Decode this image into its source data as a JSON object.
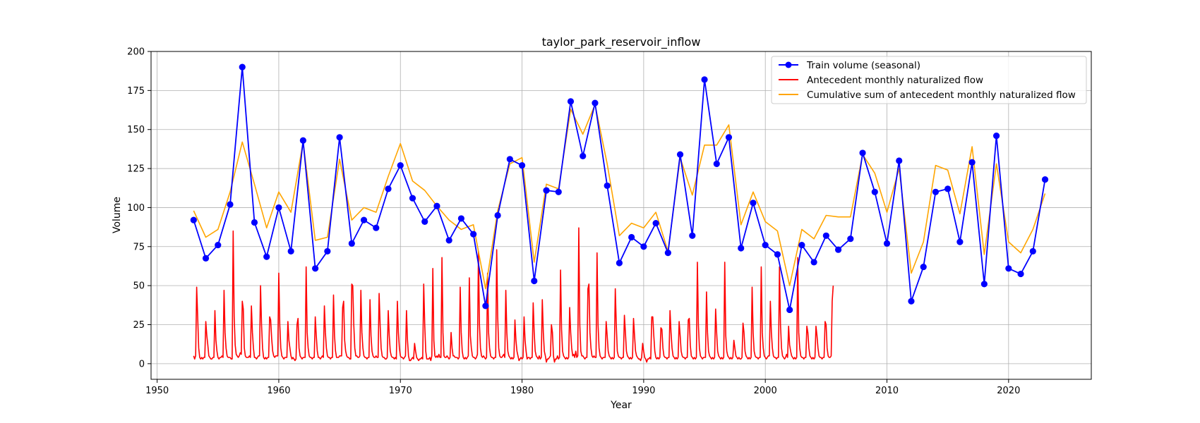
{
  "chart_data": {
    "type": "line",
    "title": "taylor_park_reservoir_inflow",
    "xlabel": "Year",
    "ylabel": "Volume",
    "xlim": [
      1949.5,
      2026.8
    ],
    "ylim": [
      -10,
      200
    ],
    "xticks": [
      1950,
      1960,
      1970,
      1980,
      1990,
      2000,
      2010,
      2020
    ],
    "yticks": [
      0,
      25,
      50,
      75,
      100,
      125,
      150,
      175,
      200
    ],
    "grid": true,
    "legend_position": "upper right",
    "series": [
      {
        "name": "Train volume (seasonal)",
        "color": "#0000ff",
        "marker": "circle",
        "x": [
          1953,
          1954,
          1955,
          1956,
          1957,
          1958,
          1959,
          1960,
          1961,
          1962,
          1963,
          1964,
          1965,
          1966,
          1967,
          1968,
          1969,
          1970,
          1971,
          1972,
          1973,
          1974,
          1975,
          1976,
          1977,
          1978,
          1979,
          1980,
          1981,
          1982,
          1983,
          1984,
          1985,
          1986,
          1987,
          1988,
          1989,
          1990,
          1991,
          1992,
          1993,
          1994,
          1995,
          1996,
          1997,
          1998,
          1999,
          2000,
          2001,
          2002,
          2003,
          2004,
          2005,
          2006,
          2007,
          2008,
          2009,
          2010,
          2011,
          2012,
          2013,
          2014,
          2015,
          2016,
          2017,
          2018,
          2019,
          2020,
          2021,
          2022,
          2023
        ],
        "y": [
          92,
          67.5,
          76,
          102,
          190,
          90.5,
          68.5,
          100,
          72,
          143,
          61,
          72,
          145,
          77,
          92,
          87,
          112,
          127,
          106,
          91,
          101,
          79,
          93,
          83,
          37,
          95,
          131,
          127,
          53,
          111,
          110,
          168,
          133,
          167,
          114,
          64.5,
          81,
          75,
          90,
          71,
          134,
          82,
          182,
          128,
          145,
          74,
          103,
          76,
          70,
          34.5,
          76,
          65,
          82,
          73,
          80,
          135,
          110,
          77,
          130,
          40,
          62,
          110,
          112,
          78,
          129,
          51,
          146,
          61,
          57.5,
          72,
          118
        ]
      },
      {
        "name": "Antecedent monthly naturalized flow",
        "color": "#ff0000",
        "x_start": 1953,
        "x_step": 0.08333,
        "y": [
          5,
          3,
          5,
          49,
          30,
          10,
          4,
          3,
          4,
          3,
          4,
          4,
          27,
          18,
          12,
          5,
          4,
          3,
          3,
          4,
          4,
          34,
          15,
          8,
          4,
          3,
          4,
          4,
          5,
          4,
          47,
          20,
          10,
          5,
          4,
          4,
          4,
          3,
          3,
          85,
          30,
          12,
          6,
          5,
          4,
          5,
          7,
          6,
          40,
          35,
          10,
          5,
          4,
          4,
          4,
          5,
          4,
          37,
          20,
          10,
          4,
          4,
          3,
          4,
          5,
          5,
          50,
          25,
          10,
          4,
          3,
          4,
          3,
          4,
          4,
          30,
          28,
          16,
          8,
          5,
          4,
          5,
          5,
          5,
          58,
          25,
          10,
          5,
          4,
          3,
          4,
          4,
          4,
          27,
          15,
          10,
          5,
          3,
          4,
          3,
          2,
          3,
          25,
          29,
          10,
          5,
          4,
          3,
          4,
          4,
          4,
          62,
          20,
          10,
          5,
          4,
          4,
          3,
          4,
          4,
          30,
          18,
          8,
          4,
          4,
          3,
          4,
          5,
          4,
          37,
          20,
          10,
          5,
          4,
          4,
          3,
          4,
          4,
          44,
          18,
          8,
          4,
          4,
          4,
          5,
          5,
          5,
          36,
          40,
          15,
          8,
          5,
          4,
          4,
          3,
          3,
          51,
          50,
          25,
          10,
          5,
          5,
          4,
          4,
          5,
          47,
          20,
          10,
          5,
          4,
          4,
          3,
          4,
          4,
          41,
          18,
          8,
          5,
          4,
          4,
          5,
          4,
          4,
          45,
          25,
          10,
          5,
          4,
          4,
          3,
          3,
          4,
          34,
          18,
          8,
          5,
          4,
          4,
          3,
          4,
          3,
          40,
          20,
          10,
          5,
          4,
          4,
          3,
          4,
          5,
          34,
          15,
          5,
          2,
          2,
          3,
          4,
          3,
          13,
          8,
          4,
          3,
          2,
          3,
          3,
          4,
          3,
          51,
          25,
          8,
          3,
          3,
          3,
          4,
          2,
          5,
          61,
          15,
          5,
          4,
          5,
          4,
          6,
          4,
          4,
          68,
          20,
          5,
          4,
          4,
          5,
          4,
          3,
          4,
          20,
          10,
          5,
          5,
          4,
          4,
          4,
          3,
          4,
          49,
          20,
          8,
          4,
          3,
          4,
          3,
          4,
          5,
          55,
          18,
          10,
          5,
          4,
          4,
          3,
          4,
          6,
          72,
          25,
          10,
          5,
          4,
          5,
          4,
          3,
          4,
          58,
          20,
          10,
          5,
          4,
          4,
          3,
          4,
          4,
          73,
          30,
          10,
          5,
          4,
          4,
          5,
          6,
          4,
          47,
          20,
          8,
          5,
          4,
          3,
          4,
          3,
          4,
          28,
          15,
          8,
          5,
          2,
          3,
          4,
          3,
          4,
          30,
          15,
          8,
          3,
          4,
          4,
          3,
          4,
          4,
          39,
          20,
          8,
          5,
          4,
          3,
          5,
          3,
          4,
          41,
          20,
          8,
          5,
          1,
          3,
          3,
          4,
          5,
          25,
          20,
          5,
          1,
          3,
          3,
          5,
          3,
          4,
          60,
          22,
          8,
          5,
          4,
          3,
          4,
          3,
          4,
          36,
          20,
          10,
          5,
          6,
          4,
          8,
          4,
          5,
          87,
          25,
          8,
          5,
          5,
          4,
          3,
          4,
          4,
          48,
          51,
          20,
          10,
          5,
          4,
          5,
          4,
          4,
          71,
          25,
          10,
          5,
          4,
          3,
          4,
          4,
          4,
          27,
          18,
          8,
          5,
          4,
          3,
          4,
          3,
          4,
          48,
          25,
          8,
          5,
          4,
          4,
          3,
          4,
          4,
          31,
          20,
          8,
          5,
          4,
          3,
          4,
          3,
          4,
          29,
          18,
          8,
          5,
          4,
          3,
          3,
          2,
          4,
          13,
          8,
          4,
          3,
          1,
          3,
          3,
          4,
          3,
          30,
          30,
          18,
          8,
          4,
          3,
          4,
          3,
          4,
          23,
          22,
          10,
          5,
          4,
          4,
          3,
          4,
          4,
          34,
          20,
          10,
          5,
          4,
          3,
          4,
          3,
          4,
          27,
          18,
          8,
          5,
          4,
          4,
          3,
          4,
          4,
          28,
          29,
          12,
          5,
          4,
          3,
          4,
          3,
          4,
          65,
          25,
          10,
          5,
          4,
          3,
          4,
          4,
          4,
          46,
          20,
          8,
          5,
          4,
          3,
          4,
          3,
          4,
          35,
          20,
          8,
          5,
          4,
          3,
          4,
          3,
          4,
          65,
          18,
          8,
          5,
          4,
          3,
          4,
          3,
          4,
          15,
          10,
          5,
          4,
          3,
          4,
          3,
          3,
          4,
          26,
          20,
          8,
          5,
          4,
          3,
          4,
          3,
          4,
          49,
          20,
          8,
          5,
          4,
          4,
          3,
          4,
          4,
          62,
          20,
          10,
          5,
          4,
          3,
          4,
          5,
          5,
          40,
          20,
          10,
          5,
          4,
          4,
          3,
          4,
          4,
          62,
          25,
          10,
          5,
          4,
          3,
          4,
          6,
          4,
          24,
          12,
          8,
          5,
          4,
          3,
          4,
          3,
          4,
          68,
          20,
          10,
          5,
          4,
          4,
          3,
          4,
          4,
          24,
          20,
          10,
          5,
          4,
          3,
          4,
          3,
          4,
          24,
          18,
          10,
          5,
          4,
          4,
          3,
          4,
          4,
          27,
          25,
          10,
          5,
          4,
          4,
          5,
          40,
          50
        ]
      },
      {
        "name": "Cumulative sum of antecedent monthly naturalized flow",
        "color": "#ffa500",
        "x": [
          1953,
          1954,
          1955,
          1956,
          1957,
          1958,
          1959,
          1960,
          1961,
          1962,
          1963,
          1964,
          1965,
          1966,
          1967,
          1968,
          1969,
          1970,
          1971,
          1972,
          1973,
          1974,
          1975,
          1976,
          1977,
          1978,
          1979,
          1980,
          1981,
          1982,
          1983,
          1984,
          1985,
          1986,
          1987,
          1988,
          1989,
          1990,
          1991,
          1992,
          1993,
          1994,
          1995,
          1996,
          1997,
          1998,
          1999,
          2000,
          2001,
          2002,
          2003,
          2004,
          2005,
          2006,
          2007,
          2008,
          2009,
          2010,
          2011,
          2012,
          2013,
          2014,
          2015,
          2016,
          2017,
          2018,
          2019,
          2020,
          2021,
          2022,
          2023
        ],
        "y": [
          98,
          81,
          86,
          110,
          142,
          115,
          87,
          110,
          97,
          142,
          79,
          81,
          131,
          92,
          100,
          97,
          120,
          141,
          117,
          111,
          101,
          92,
          86,
          89,
          48,
          98,
          128,
          132,
          65,
          115,
          112,
          163,
          147,
          166,
          128,
          82,
          90,
          87,
          97,
          72,
          132,
          108,
          140,
          140,
          153,
          89,
          110,
          91,
          85,
          50,
          86,
          80,
          95,
          94,
          94,
          134,
          122,
          97,
          125,
          58,
          78,
          127,
          124,
          96,
          139,
          70,
          128,
          78,
          71,
          86,
          109
        ]
      }
    ]
  }
}
